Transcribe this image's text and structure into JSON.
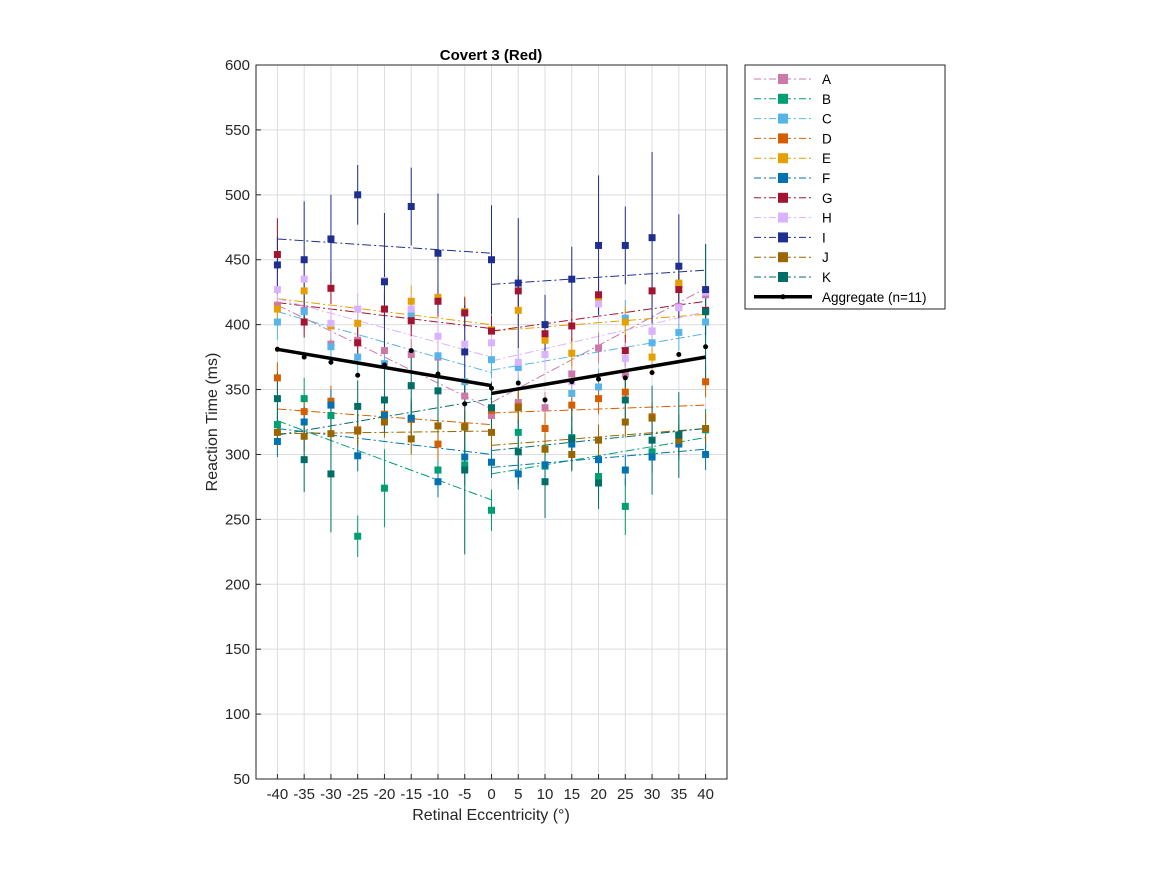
{
  "chart_data": {
    "type": "line",
    "title": "Covert 3 (Red)",
    "xlabel": "Retinal Eccentricity (°)",
    "ylabel": "Reaction Time (ms)",
    "x": [
      -40,
      -35,
      -30,
      -25,
      -20,
      -15,
      -10,
      -5,
      0,
      5,
      10,
      15,
      20,
      25,
      30,
      35,
      40
    ],
    "xtick_labels": [
      "-40",
      "-35",
      "-30",
      "-25",
      "-20",
      "-15",
      "-10",
      "-5",
      "0",
      "5",
      "10",
      "15",
      "20",
      "25",
      "30",
      "35",
      "40"
    ],
    "yticks": [
      50,
      100,
      150,
      200,
      250,
      300,
      350,
      400,
      450,
      500,
      550,
      600
    ],
    "ytick_labels": [
      "50",
      "100",
      "150",
      "200",
      "250",
      "300",
      "350",
      "400",
      "450",
      "500",
      "550",
      "600"
    ],
    "xlim": [
      -44,
      44
    ],
    "ylim": [
      50,
      600
    ],
    "grid": true,
    "legend_position": "outside-top-right",
    "series": [
      {
        "name": "A",
        "color": "#CC79A7",
        "values": [
          415,
          411,
          385,
          388,
          380,
          377,
          375,
          345,
          330,
          340,
          336,
          362,
          382,
          362,
          395,
          414,
          423
        ],
        "err": [
          12,
          12,
          12,
          12,
          12,
          12,
          12,
          12,
          12,
          12,
          12,
          12,
          12,
          12,
          12,
          12,
          12
        ],
        "fit_left": [
          [
            -40,
            415
          ],
          [
            0,
            335
          ]
        ],
        "fit_right": [
          [
            0,
            340
          ],
          [
            40,
            428
          ]
        ]
      },
      {
        "name": "B",
        "color": "#009E73",
        "values": [
          323,
          343,
          330,
          237,
          274,
          327,
          288,
          292,
          257,
          317,
          291,
          313,
          283,
          260,
          302,
          315,
          319
        ],
        "err": [
          16,
          16,
          16,
          16,
          30,
          16,
          16,
          16,
          16,
          16,
          16,
          16,
          16,
          22,
          16,
          16,
          16
        ],
        "fit_left": [
          [
            -40,
            326
          ],
          [
            0,
            265
          ]
        ],
        "fit_right": [
          [
            0,
            285
          ],
          [
            40,
            313
          ]
        ]
      },
      {
        "name": "C",
        "color": "#56B4E9",
        "values": [
          402,
          410,
          383,
          375,
          370,
          408,
          376,
          356,
          373,
          367,
          390,
          347,
          352,
          405,
          386,
          394,
          402
        ],
        "err": [
          14,
          14,
          14,
          14,
          14,
          14,
          14,
          14,
          14,
          14,
          14,
          14,
          14,
          14,
          14,
          14,
          14
        ],
        "fit_left": [
          [
            -40,
            410
          ],
          [
            0,
            363
          ]
        ],
        "fit_right": [
          [
            0,
            365
          ],
          [
            40,
            393
          ]
        ]
      },
      {
        "name": "D",
        "color": "#D55E00",
        "values": [
          359,
          333,
          341,
          319,
          331,
          327,
          308,
          322,
          334,
          337,
          320,
          338,
          343,
          348,
          329,
          431,
          356
        ],
        "err": [
          12,
          12,
          12,
          12,
          12,
          12,
          12,
          12,
          12,
          12,
          12,
          12,
          12,
          12,
          12,
          12,
          12
        ],
        "fit_left": [
          [
            -40,
            335
          ],
          [
            0,
            323
          ]
        ],
        "fit_right": [
          [
            0,
            332
          ],
          [
            40,
            338
          ]
        ]
      },
      {
        "name": "E",
        "color": "#E69F00",
        "values": [
          412,
          426,
          399,
          401,
          412,
          418,
          421,
          410,
          396,
          411,
          388,
          378,
          420,
          402,
          375,
          432,
          410
        ],
        "err": [
          12,
          12,
          12,
          12,
          12,
          12,
          12,
          12,
          12,
          12,
          12,
          12,
          12,
          12,
          12,
          12,
          12
        ],
        "fit_left": [
          [
            -40,
            420
          ],
          [
            0,
            400
          ]
        ],
        "fit_right": [
          [
            0,
            395
          ],
          [
            40,
            408
          ]
        ]
      },
      {
        "name": "F",
        "color": "#0072B2",
        "values": [
          310,
          325,
          338,
          299,
          330,
          328,
          279,
          298,
          294,
          285,
          292,
          308,
          296,
          288,
          298,
          308,
          300
        ],
        "err": [
          12,
          12,
          12,
          12,
          12,
          12,
          12,
          12,
          12,
          12,
          12,
          12,
          12,
          12,
          12,
          12,
          12
        ],
        "fit_left": [
          [
            -40,
            320
          ],
          [
            0,
            300
          ]
        ],
        "fit_right": [
          [
            0,
            290
          ],
          [
            40,
            304
          ]
        ]
      },
      {
        "name": "G",
        "color": "#A2142F",
        "values": [
          454,
          402,
          428,
          386,
          412,
          403,
          418,
          409,
          395,
          426,
          393,
          399,
          423,
          380,
          426,
          427,
          411
        ],
        "err": [
          28,
          12,
          12,
          12,
          12,
          12,
          12,
          12,
          12,
          12,
          12,
          12,
          12,
          12,
          12,
          12,
          12
        ],
        "fit_left": [
          [
            -40,
            417
          ],
          [
            0,
            397
          ]
        ],
        "fit_right": [
          [
            0,
            395
          ],
          [
            40,
            418
          ]
        ]
      },
      {
        "name": "H",
        "color": "#D9B3FF",
        "values": [
          427,
          435,
          401,
          412,
          434,
          412,
          391,
          385,
          386,
          371,
          377,
          356,
          416,
          374,
          395,
          413,
          425
        ],
        "err": [
          12,
          12,
          12,
          12,
          12,
          12,
          12,
          12,
          12,
          12,
          12,
          12,
          12,
          12,
          12,
          12,
          12
        ],
        "fit_left": [
          [
            -40,
            420
          ],
          [
            0,
            375
          ]
        ],
        "fit_right": [
          [
            0,
            372
          ],
          [
            40,
            410
          ]
        ]
      },
      {
        "name": "I",
        "color": "#1F2F8F",
        "values": [
          446,
          450,
          466,
          500,
          433,
          491,
          455,
          379,
          450,
          432,
          400,
          435,
          461,
          461,
          467,
          445,
          427
        ],
        "err": [
          22,
          45,
          34,
          23,
          53,
          30,
          46,
          36,
          42,
          50,
          23,
          25,
          54,
          30,
          66,
          40,
          35
        ],
        "fit_left": [
          [
            -40,
            466
          ],
          [
            0,
            455
          ]
        ],
        "fit_right": [
          [
            0,
            431
          ],
          [
            40,
            442
          ]
        ]
      },
      {
        "name": "J",
        "color": "#996600",
        "values": [
          317,
          314,
          316,
          318,
          325,
          312,
          322,
          321,
          317,
          336,
          304,
          300,
          311,
          325,
          328,
          311,
          320
        ],
        "err": [
          12,
          12,
          12,
          12,
          12,
          12,
          12,
          12,
          12,
          12,
          12,
          12,
          12,
          12,
          12,
          12,
          12
        ],
        "fit_left": [
          [
            -40,
            316
          ],
          [
            0,
            318
          ]
        ],
        "fit_right": [
          [
            0,
            307
          ],
          [
            40,
            320
          ]
        ]
      },
      {
        "name": "K",
        "color": "#006E66",
        "values": [
          343,
          296,
          285,
          337,
          342,
          353,
          349,
          288,
          336,
          302,
          279,
          312,
          278,
          342,
          311,
          315,
          410
        ],
        "err": [
          20,
          25,
          45,
          20,
          25,
          25,
          25,
          65,
          20,
          25,
          28,
          25,
          20,
          20,
          42,
          33,
          52
        ],
        "fit_left": [
          [
            -40,
            315
          ],
          [
            0,
            343
          ]
        ],
        "fit_right": [
          [
            0,
            303
          ],
          [
            40,
            320
          ]
        ]
      }
    ],
    "aggregate": {
      "name": "Aggregate (n=11)",
      "color": "#000000",
      "values": [
        381,
        375,
        371,
        361,
        369,
        380,
        362,
        339,
        351,
        355,
        342,
        356,
        358,
        359,
        363,
        377,
        383
      ],
      "fit_left": [
        [
          -40,
          381
        ],
        [
          0,
          353
        ]
      ],
      "fit_right": [
        [
          0,
          347
        ],
        [
          40,
          375
        ]
      ]
    }
  }
}
